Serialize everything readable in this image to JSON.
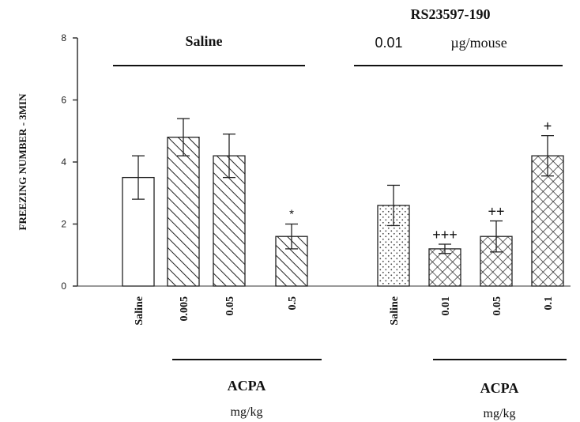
{
  "chart_data": {
    "type": "bar",
    "ylabel": "FREEZING NUMBER - 3MIN",
    "ylim": [
      0,
      8
    ],
    "yticks": [
      0,
      2,
      4,
      6,
      8
    ],
    "groups": [
      {
        "label": "Saline",
        "bracket_label": "ACPA",
        "bracket_unit": "mg/kg",
        "bars": [
          {
            "category": "Saline",
            "value": 3.5,
            "error": 0.7,
            "pattern": "none",
            "annotation": ""
          },
          {
            "category": "0.005",
            "value": 4.8,
            "error": 0.6,
            "pattern": "hatch-forward",
            "annotation": ""
          },
          {
            "category": "0.05",
            "value": 4.2,
            "error": 0.7,
            "pattern": "hatch-forward",
            "annotation": ""
          },
          {
            "category": "0.5",
            "value": 1.6,
            "error": 0.4,
            "pattern": "hatch-forward",
            "annotation": "*"
          }
        ]
      },
      {
        "label": "RS23597-190",
        "sublabel_dose": "0.01",
        "sublabel_unit": "µg/mouse",
        "bracket_label": "ACPA",
        "bracket_unit": "mg/kg",
        "bars": [
          {
            "category": "Saline",
            "value": 2.6,
            "error": 0.65,
            "pattern": "dots",
            "annotation": ""
          },
          {
            "category": "0.01",
            "value": 1.2,
            "error": 0.15,
            "pattern": "crosshatch",
            "annotation": "+++"
          },
          {
            "category": "0.05",
            "value": 1.6,
            "error": 0.5,
            "pattern": "crosshatch",
            "annotation": "++"
          },
          {
            "category": "0.1",
            "value": 4.2,
            "error": 0.65,
            "pattern": "crosshatch",
            "annotation": "+"
          }
        ]
      }
    ]
  }
}
